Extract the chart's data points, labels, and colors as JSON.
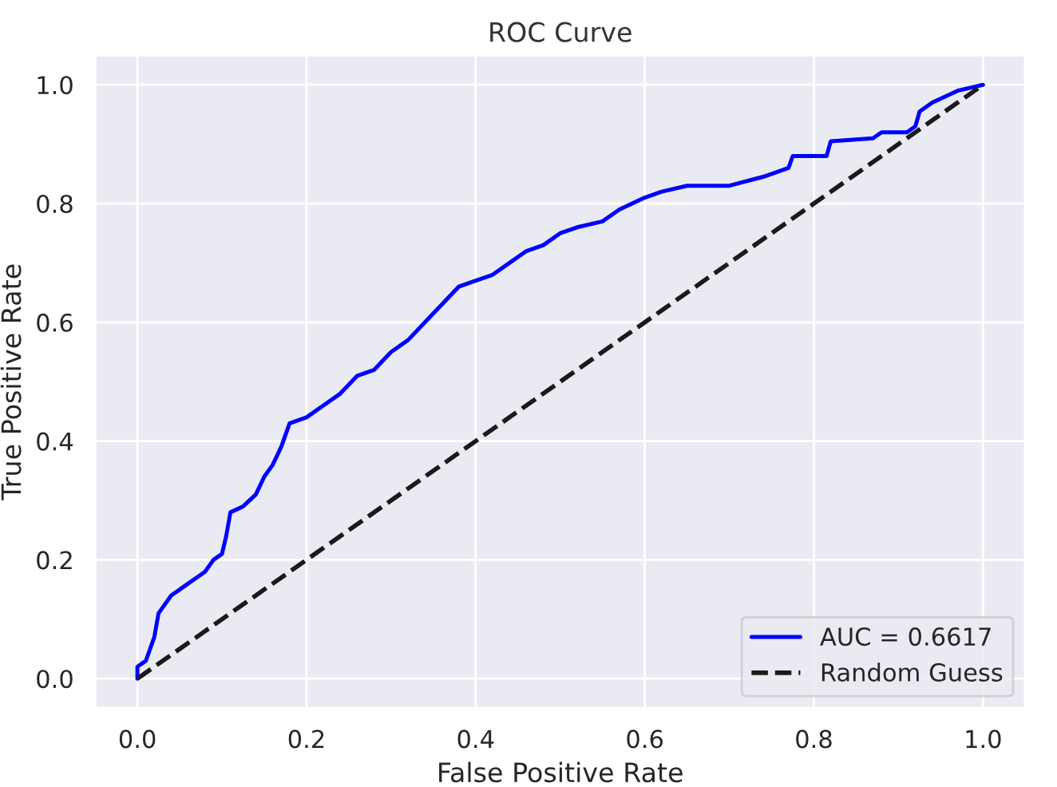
{
  "chart_data": {
    "type": "line",
    "title": "ROC Curve",
    "xlabel": "False Positive Rate",
    "ylabel": "True Positive Rate",
    "xlim": [
      -0.05,
      1.05
    ],
    "ylim": [
      -0.05,
      1.05
    ],
    "xticks": [
      {
        "value": 0,
        "label": "0.0"
      },
      0.2,
      0.4,
      0.6,
      0.8,
      {
        "value": 1,
        "label": "1.0"
      }
    ],
    "yticks": [
      {
        "value": 0,
        "label": "0.0"
      },
      0.2,
      0.4,
      0.6,
      0.8,
      {
        "value": 1,
        "label": "1.0"
      }
    ],
    "grid": true,
    "legend": "bottom right",
    "series": [
      {
        "name": "AUC = 0.6617",
        "color": "#0000ff",
        "line_style": "solid",
        "x": [
          0,
          0,
          0.01,
          0.015,
          0.02,
          0.025,
          0.03,
          0.04,
          0.05,
          0.06,
          0.07,
          0.08,
          0.09,
          0.1,
          0.105,
          0.11,
          0.125,
          0.14,
          0.15,
          0.16,
          0.17,
          0.18,
          0.2,
          0.22,
          0.24,
          0.26,
          0.28,
          0.3,
          0.32,
          0.34,
          0.36,
          0.38,
          0.4,
          0.42,
          0.44,
          0.46,
          0.48,
          0.5,
          0.52,
          0.55,
          0.57,
          0.6,
          0.62,
          0.65,
          0.7,
          0.74,
          0.77,
          0.775,
          0.815,
          0.82,
          0.87,
          0.88,
          0.91,
          0.92,
          0.925,
          0.94,
          0.97,
          1
        ],
        "values": [
          0,
          0.02,
          0.03,
          0.05,
          0.07,
          0.11,
          0.12,
          0.14,
          0.15,
          0.16,
          0.17,
          0.18,
          0.2,
          0.21,
          0.24,
          0.28,
          0.29,
          0.31,
          0.34,
          0.36,
          0.39,
          0.43,
          0.44,
          0.46,
          0.48,
          0.51,
          0.52,
          0.55,
          0.57,
          0.6,
          0.63,
          0.66,
          0.67,
          0.68,
          0.7,
          0.72,
          0.73,
          0.75,
          0.76,
          0.77,
          0.79,
          0.81,
          0.82,
          0.83,
          0.83,
          0.845,
          0.86,
          0.88,
          0.88,
          0.905,
          0.91,
          0.92,
          0.92,
          0.93,
          0.955,
          0.97,
          0.99,
          1
        ]
      },
      {
        "name": "Random Guess",
        "color": "#1a1a1a",
        "line_style": "dashed",
        "x": [
          0,
          1
        ],
        "values": [
          0,
          1
        ]
      }
    ]
  }
}
